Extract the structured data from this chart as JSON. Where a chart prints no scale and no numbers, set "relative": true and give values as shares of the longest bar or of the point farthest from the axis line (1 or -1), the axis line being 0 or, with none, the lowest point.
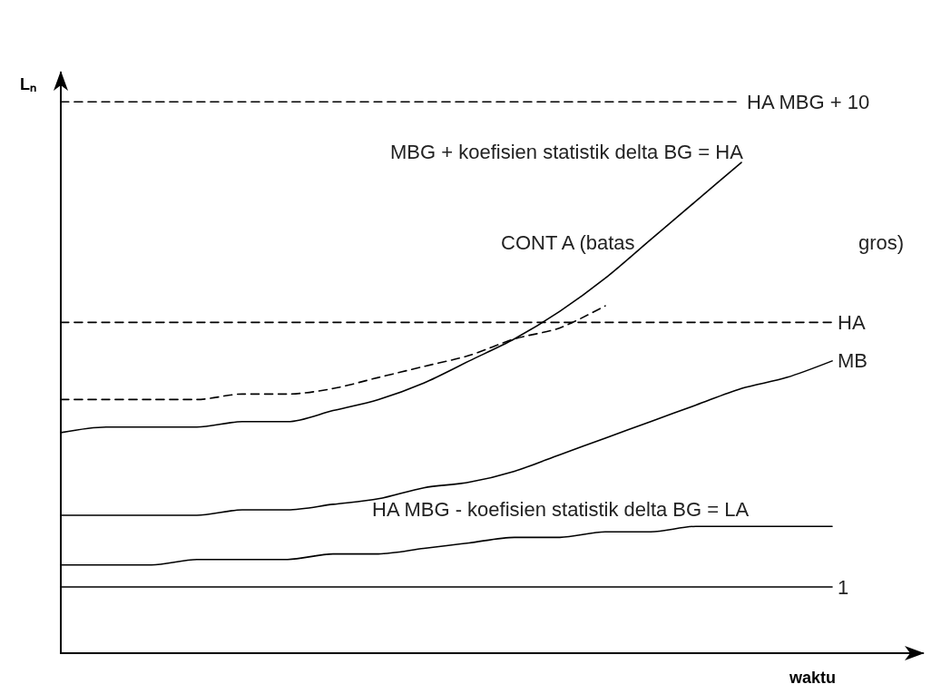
{
  "chart_data": {
    "type": "line",
    "relative": true,
    "xlabel": "waktu",
    "ylabel": "Lₙ",
    "categories": [
      null,
      null,
      null,
      null,
      null,
      null,
      null,
      null,
      null,
      null,
      null,
      null,
      null,
      null,
      null,
      null,
      null,
      null,
      null,
      null
    ],
    "series": [
      {
        "name": "HA MBG + 10",
        "color": "#000000",
        "line_style": "dashed",
        "values": [
          1,
          1,
          1,
          1,
          1,
          1,
          1,
          1,
          1,
          1,
          1,
          1,
          1,
          1,
          1,
          1,
          null,
          null,
          null,
          null
        ]
      },
      {
        "name": "HA",
        "color": "#000000",
        "line_style": "dashed",
        "values": [
          0.6,
          0.6,
          0.6,
          0.6,
          0.6,
          0.6,
          0.6,
          0.6,
          0.6,
          0.6,
          0.6,
          0.6,
          0.6,
          0.6,
          0.6,
          0.6,
          0.6,
          0.6,
          null,
          null
        ]
      },
      {
        "color": "#000000",
        "line_style": "solid",
        "values": [
          0.4,
          0.41,
          0.41,
          0.41,
          0.42,
          0.42,
          0.44,
          0.46,
          0.49,
          0.53,
          0.57,
          0.62,
          0.68,
          0.75,
          0.82,
          0.89,
          null,
          null,
          null,
          null
        ]
      },
      {
        "color": "#000000",
        "line_style": "dashed",
        "values": [
          0.46,
          0.46,
          0.46,
          0.46,
          0.47,
          0.47,
          0.48,
          0.5,
          0.52,
          0.54,
          0.57,
          0.59,
          0.63,
          null,
          null,
          null,
          null,
          null,
          null,
          null
        ]
      },
      {
        "name": "MB",
        "color": "#000000",
        "line_style": "solid",
        "values": [
          0.25,
          0.25,
          0.25,
          0.25,
          0.26,
          0.26,
          0.27,
          0.28,
          0.3,
          0.31,
          0.33,
          0.36,
          0.39,
          0.42,
          0.45,
          0.48,
          0.5,
          0.53,
          null,
          null
        ]
      },
      {
        "color": "#000000",
        "line_style": "solid",
        "values": [
          0.16,
          0.16,
          0.16,
          0.17,
          0.17,
          0.17,
          0.18,
          0.18,
          0.19,
          0.2,
          0.21,
          0.21,
          0.22,
          0.22,
          0.23,
          0.23,
          0.23,
          0.23,
          null,
          null
        ]
      },
      {
        "name": "1",
        "color": "#000000",
        "line_style": "solid",
        "values": [
          0.12,
          0.12,
          0.12,
          0.12,
          0.12,
          0.12,
          0.12,
          0.12,
          0.12,
          0.12,
          0.12,
          0.12,
          0.12,
          0.12,
          0.12,
          0.12,
          0.12,
          0.12,
          null,
          null
        ]
      }
    ],
    "annotations": [
      "MBG + koefisien statistik delta BG = HA",
      "CONT A (batas",
      "gros)",
      "HA MBG - koefisien statistik delta BG = LA"
    ],
    "legend": false,
    "grid": false,
    "marker": "none"
  }
}
